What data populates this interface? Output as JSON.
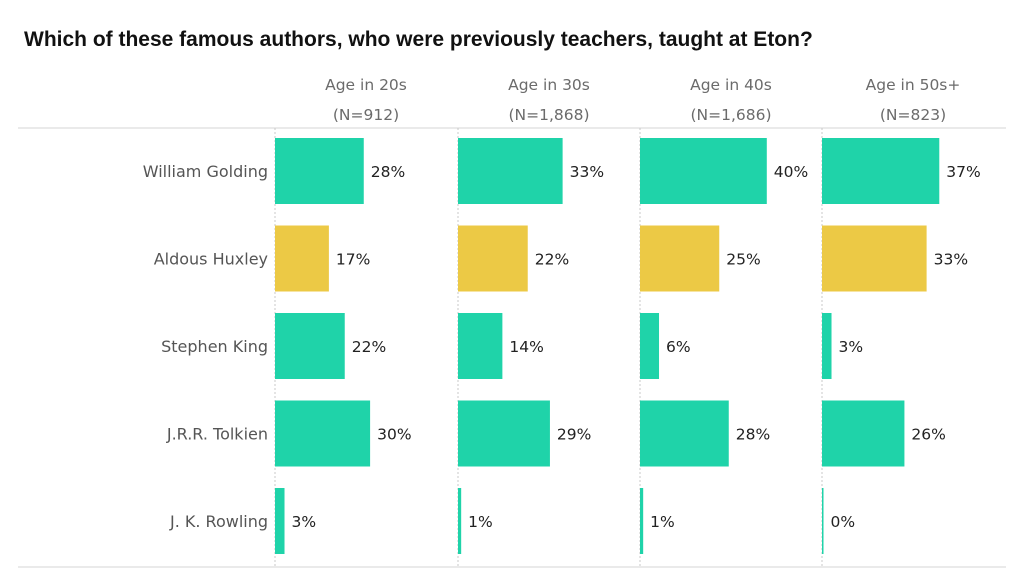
{
  "chart_data": {
    "type": "bar",
    "title": "Which of these famous authors, who were previously teachers, taught at Eton?",
    "categories": [
      "William Golding",
      "Aldous Huxley",
      "Stephen King",
      "J.R.R. Tolkien",
      "J. K. Rowling"
    ],
    "series": [
      {
        "name": "Age in 20s",
        "sample": "(N=912)",
        "values": [
          28,
          17,
          22,
          30,
          3
        ]
      },
      {
        "name": "Age in 30s",
        "sample": "(N=1,868)",
        "values": [
          33,
          22,
          14,
          29,
          1
        ]
      },
      {
        "name": "Age in 40s",
        "sample": "(N=1,686)",
        "values": [
          40,
          25,
          6,
          28,
          1
        ]
      },
      {
        "name": "Age in 50s+",
        "sample": "(N=823)",
        "values": [
          37,
          33,
          3,
          26,
          0
        ]
      }
    ],
    "value_suffix": "%",
    "highlight_category": "Aldous Huxley",
    "colors": {
      "default": "#1fd3a9",
      "highlight": "#ecc945"
    },
    "grid": false
  }
}
